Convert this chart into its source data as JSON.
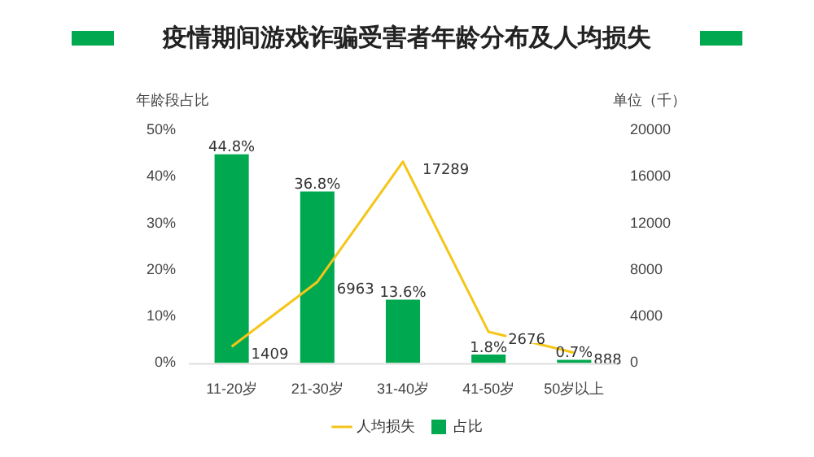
{
  "chart_data": {
    "type": "bar",
    "title": "疫情期间游戏诈骗受害者年龄分布及人均损失",
    "ylabel": "年龄段占比",
    "y2label": "单位（千）",
    "categories": [
      "11-20岁",
      "21-30岁",
      "31-40岁",
      "41-50岁",
      "50岁以上"
    ],
    "series": [
      {
        "name": "占比",
        "color": "#00a94f",
        "values": [
          44.8,
          36.8,
          13.6,
          1.8,
          0.7
        ],
        "value_labels": [
          "44.8%",
          "36.8%",
          "13.6%",
          "1.8%",
          "0.7%"
        ]
      },
      {
        "name": "人均损失",
        "type": "line",
        "axis": "y2",
        "color": "#f5c518",
        "values": [
          1409,
          6963,
          17289,
          2676,
          888
        ],
        "value_labels": [
          "1409",
          "6963",
          "17289",
          "2676",
          "888"
        ]
      }
    ],
    "ylim": [
      0,
      50
    ],
    "yticks": [
      {
        "value": 0,
        "label": "0%"
      },
      {
        "value": 10,
        "label": "10%"
      },
      {
        "value": 20,
        "label": "20%"
      },
      {
        "value": 30,
        "label": "30%"
      },
      {
        "value": 40,
        "label": "40%"
      },
      {
        "value": 50,
        "label": "50%"
      }
    ],
    "y2lim": [
      0,
      20000
    ],
    "y2ticks": [
      0,
      4000,
      8000,
      12000,
      16000,
      20000
    ],
    "grid": false,
    "legend": "bottom",
    "marker": "none",
    "line_style": "solid"
  }
}
